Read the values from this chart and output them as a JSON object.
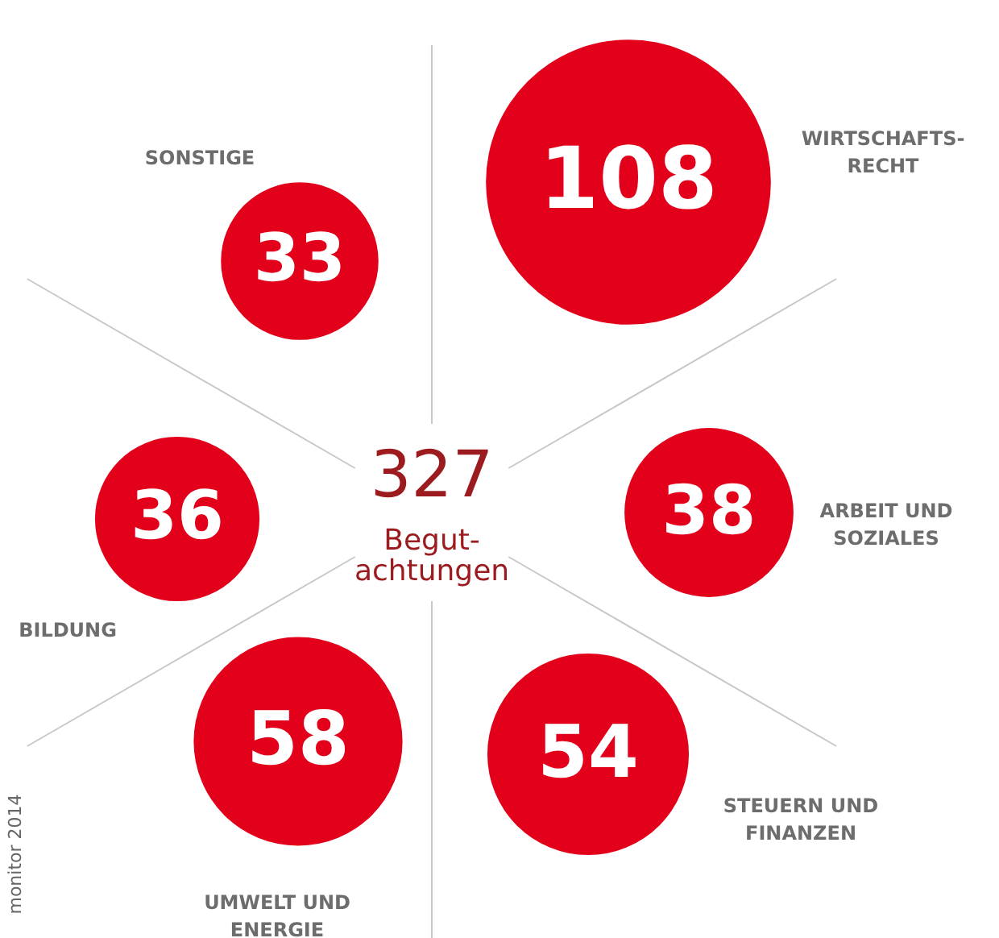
{
  "chart_data": {
    "type": "other",
    "categories": [
      "SONSTIGE",
      "WIRTSCHAFTS-\nRECHT",
      "ARBEIT UND\nSOZIALES",
      "STEUERN UND\nFINANZEN",
      "UMWELT UND\nENERGIE",
      "BILDUNG"
    ],
    "values": [
      33,
      108,
      38,
      54,
      58,
      36
    ],
    "color": "#e2001a",
    "data_labels": true,
    "annotations": [
      "327",
      "Begut-\nachtungen",
      "monitor 2014"
    ]
  }
}
